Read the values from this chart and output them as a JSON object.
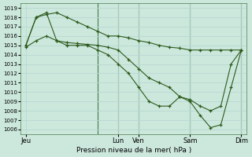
{
  "xlabel": "Pression niveau de la mer( hPa )",
  "ylim": [
    1005.5,
    1019.5
  ],
  "yticks": [
    1006,
    1007,
    1008,
    1009,
    1010,
    1011,
    1012,
    1013,
    1014,
    1015,
    1016,
    1017,
    1018,
    1019
  ],
  "bg_color": "#cce8dd",
  "grid_color": "#b8d8d0",
  "line_color": "#2d5a1b",
  "vline_color": "#4a7a4a",
  "xtick_labels": [
    "Jeu",
    "Lun",
    "Ven",
    "Sam",
    "Dim"
  ],
  "xtick_positions": [
    0,
    9,
    11,
    16,
    21
  ],
  "vline_positions": [
    7,
    9,
    11,
    16,
    21
  ],
  "xlim": [
    -0.5,
    21.5
  ],
  "line1_x": [
    0,
    1,
    2,
    3,
    4,
    5,
    6,
    7,
    8,
    9,
    10,
    11,
    12,
    13,
    14,
    15,
    16,
    17,
    18,
    19,
    20,
    21
  ],
  "line1_y": [
    1015.0,
    1018.0,
    1018.3,
    1018.5,
    1018.0,
    1017.5,
    1017.0,
    1016.5,
    1016.0,
    1016.0,
    1015.8,
    1015.5,
    1015.3,
    1015.0,
    1014.8,
    1014.7,
    1014.5,
    1014.5,
    1014.5,
    1014.5,
    1014.5,
    1014.5
  ],
  "line2_x": [
    0,
    1,
    2,
    3,
    4,
    5,
    6,
    7,
    8,
    9,
    10,
    11,
    12,
    13,
    14,
    15,
    16,
    17,
    18,
    19,
    20,
    21
  ],
  "line2_y": [
    1015.0,
    1018.0,
    1018.5,
    1015.5,
    1015.3,
    1015.2,
    1015.1,
    1015.0,
    1014.8,
    1014.5,
    1013.5,
    1012.5,
    1011.5,
    1011.0,
    1010.5,
    1009.5,
    1009.2,
    1008.5,
    1008.0,
    1008.5,
    1013.0,
    1014.5
  ],
  "line3_x": [
    0,
    1,
    2,
    3,
    4,
    5,
    6,
    7,
    8,
    9,
    10,
    11,
    12,
    13,
    14,
    15,
    16,
    17,
    18,
    19,
    20,
    21
  ],
  "line3_y": [
    1014.8,
    1015.5,
    1016.0,
    1015.5,
    1015.0,
    1015.0,
    1015.0,
    1014.5,
    1014.0,
    1013.0,
    1012.0,
    1010.5,
    1009.0,
    1008.5,
    1008.5,
    1009.5,
    1009.0,
    1007.5,
    1006.2,
    1006.5,
    1010.5,
    1014.5
  ]
}
